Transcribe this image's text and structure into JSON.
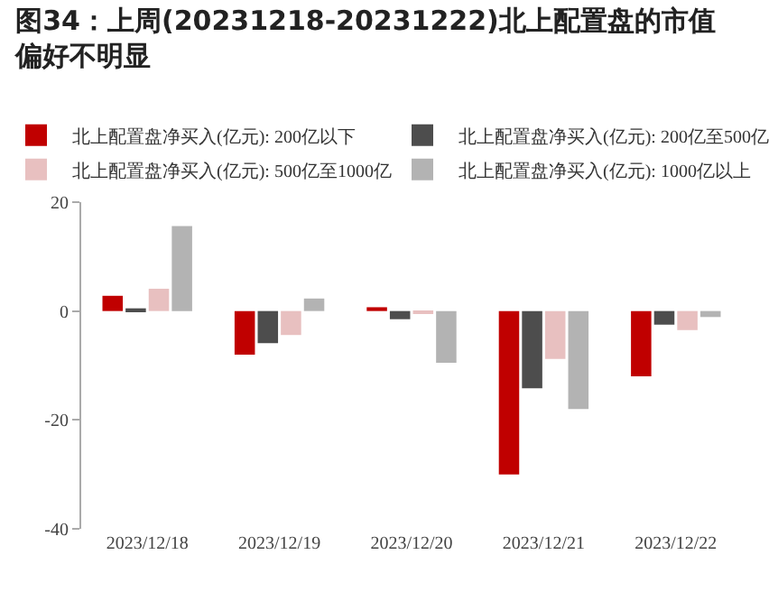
{
  "chart_data": {
    "type": "bar",
    "title": "图34：上周(20231218-20231222)北上配置盘的市值偏好不明显",
    "categories": [
      "2023/12/18",
      "2023/12/19",
      "2023/12/20",
      "2023/12/21",
      "2023/12/22"
    ],
    "series": [
      {
        "name": "北上配置盘净买入(亿元): 200亿以下",
        "color": "#c00000",
        "values": [
          2.8,
          -8.0,
          0.7,
          -30.0,
          -12.0
        ]
      },
      {
        "name": "北上配置盘净买入(亿元): 200亿至500亿",
        "color": "#4d4d4d",
        "values": [
          0.5,
          -5.9,
          -1.5,
          -14.2,
          -2.5
        ]
      },
      {
        "name": "北上配置盘净买入(亿元): 500亿至1000亿",
        "color": "#e8c0c0",
        "values": [
          4.1,
          -4.4,
          -0.5,
          -8.8,
          -3.5
        ]
      },
      {
        "name": "北上配置盘净买入(亿元): 1000亿以上",
        "color": "#b3b3b3",
        "values": [
          15.6,
          2.3,
          -9.5,
          -18.0,
          -1.1
        ]
      }
    ],
    "ylim": [
      -40,
      20
    ],
    "yticks": [
      -40,
      -20,
      0,
      20
    ],
    "grid": false,
    "legend": "top"
  }
}
